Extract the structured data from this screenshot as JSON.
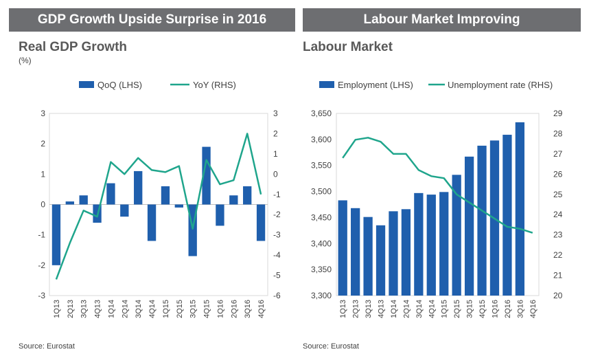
{
  "left": {
    "banner": "GDP Growth Upside Surprise in 2016",
    "title": "Real GDP Growth",
    "unit": "(%)",
    "source": "Source: Eurostat"
  },
  "right": {
    "banner": "Labour Market Improving",
    "title": "Labour Market",
    "source": "Source: Eurostat"
  },
  "colors": {
    "bar": "#1f5fad",
    "line": "#1fa58c",
    "banner": "#6d6e71",
    "grid": "#d9d9d9"
  },
  "chart_data": [
    {
      "type": "bar+line",
      "title": "Real GDP Growth",
      "categories": [
        "1Q13",
        "2Q13",
        "3Q13",
        "4Q13",
        "1Q14",
        "2Q14",
        "3Q14",
        "4Q14",
        "1Q15",
        "2Q15",
        "3Q15",
        "4Q15",
        "1Q16",
        "2Q16",
        "3Q16",
        "4Q16"
      ],
      "series": [
        {
          "name": "QoQ (LHS)",
          "kind": "bar",
          "axis": "left",
          "values": [
            -2.0,
            0.1,
            0.3,
            -0.6,
            0.7,
            -0.4,
            1.1,
            -1.2,
            0.6,
            -0.1,
            -1.7,
            1.9,
            -0.7,
            0.3,
            0.6,
            -1.2
          ]
        },
        {
          "name": "YoY (RHS)",
          "kind": "line",
          "axis": "right",
          "values": [
            -5.2,
            -3.4,
            -1.8,
            -2.1,
            0.6,
            0.0,
            0.8,
            0.2,
            0.1,
            0.4,
            -2.7,
            0.7,
            -0.5,
            -0.3,
            2.0,
            -1.0
          ]
        }
      ],
      "y_left": {
        "min": -3,
        "max": 3,
        "ticks": [
          "3",
          "2",
          "1",
          "0",
          "-1",
          "-2",
          "-3"
        ]
      },
      "y_right": {
        "min": -6,
        "max": 3,
        "ticks": [
          "3",
          "2",
          "1",
          "0",
          "-1",
          "-2",
          "-3",
          "-4",
          "-5",
          "-6"
        ]
      }
    },
    {
      "type": "bar+line",
      "title": "Labour Market",
      "categories": [
        "1Q13",
        "2Q13",
        "3Q13",
        "4Q13",
        "1Q14",
        "2Q14",
        "3Q14",
        "4Q14",
        "1Q15",
        "2Q15",
        "3Q15",
        "4Q15",
        "1Q16",
        "2Q16",
        "3Q16",
        "4Q16"
      ],
      "series": [
        {
          "name": "Employment (LHS)",
          "kind": "bar",
          "axis": "left",
          "values": [
            3483,
            3468,
            3451,
            3435,
            3462,
            3466,
            3497,
            3494,
            3499,
            3532,
            3567,
            3588,
            3598,
            3609,
            3633,
            null
          ]
        },
        {
          "name": "Unemployment rate (RHS)",
          "kind": "line",
          "axis": "right",
          "values": [
            26.8,
            27.7,
            27.8,
            27.6,
            27.0,
            27.0,
            26.2,
            25.9,
            25.8,
            25.0,
            24.6,
            24.2,
            23.8,
            23.4,
            23.3,
            23.1
          ]
        }
      ],
      "y_left": {
        "min": 3300,
        "max": 3650,
        "ticks": [
          "3,650",
          "3,600",
          "3,550",
          "3,500",
          "3,450",
          "3,400",
          "3,350",
          "3,300"
        ]
      },
      "y_right": {
        "min": 20,
        "max": 29,
        "ticks": [
          "29",
          "28",
          "27",
          "26",
          "25",
          "24",
          "23",
          "22",
          "21",
          "20"
        ]
      }
    }
  ]
}
